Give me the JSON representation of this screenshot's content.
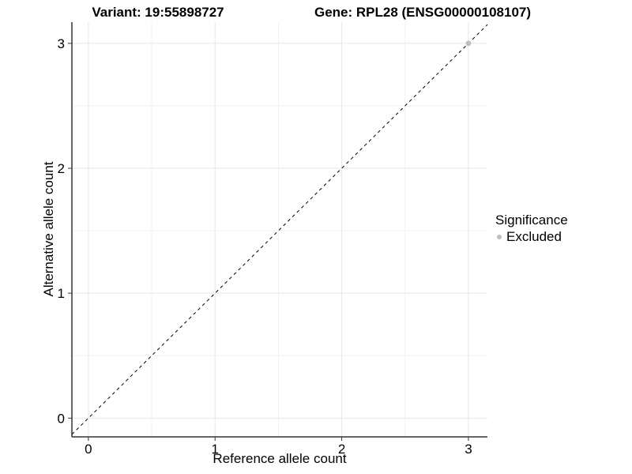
{
  "titles": {
    "variant": "Variant: 19:55898727",
    "gene": "Gene: RPL28 (ENSG00000108107)"
  },
  "chart_data": {
    "type": "scatter",
    "title": "Variant: 19:55898727 — Gene: RPL28 (ENSG00000108107)",
    "xlabel": "Reference allele count",
    "ylabel": "Alternative allele count",
    "xlim": [
      -0.13,
      3.15
    ],
    "ylim": [
      -0.15,
      3.17
    ],
    "xticks": [
      0,
      1,
      2,
      3
    ],
    "yticks": [
      0,
      1,
      2,
      3
    ],
    "minor_xticks": [
      0.5,
      1.5,
      2.5
    ],
    "minor_yticks": [
      0.5,
      1.5,
      2.5
    ],
    "grid": true,
    "reference_line": {
      "type": "identity",
      "slope": 1,
      "intercept": 0,
      "style": "dashed",
      "color": "#000000"
    },
    "series": [
      {
        "name": "Excluded",
        "color": "#bebebe",
        "points": [
          [
            3,
            3
          ]
        ]
      }
    ],
    "legend": {
      "title": "Significance",
      "position": "right",
      "items": [
        {
          "label": "Excluded",
          "color": "#bebebe"
        }
      ]
    }
  },
  "colors": {
    "background": "#ffffff",
    "grid_major": "#e6e6e6",
    "grid_minor": "#f2f2f2",
    "axis_line": "#333333",
    "tick_label": "#000000",
    "point": "#bebebe"
  }
}
